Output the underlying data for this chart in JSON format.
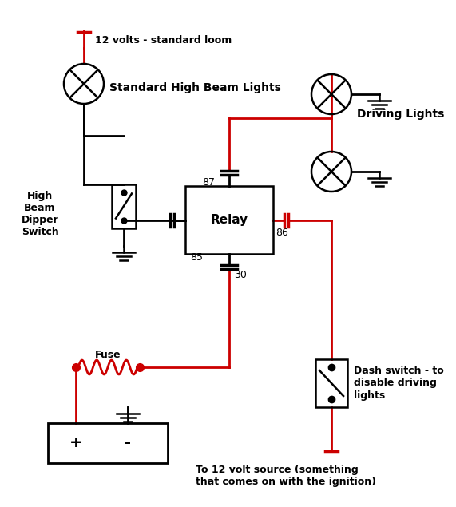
{
  "bg_color": "#ffffff",
  "red": "#cc0000",
  "black": "#000000",
  "labels": {
    "volts": "12 volts - standard loom",
    "std_high_beam": "Standard High Beam Lights",
    "high_beam_switch": "High\nBeam\nDipper\nSwitch",
    "relay_label": "Relay",
    "relay_85": "85",
    "relay_87": "87",
    "relay_86": "86",
    "relay_30": "30",
    "fuse": "Fuse",
    "driving_lights": "Driving Lights",
    "dash_switch": "Dash switch - to\ndisable driving\nlights",
    "to_12v": "To 12 volt source (something\nthat comes on with the ignition)",
    "plus": "+",
    "minus": "-"
  }
}
